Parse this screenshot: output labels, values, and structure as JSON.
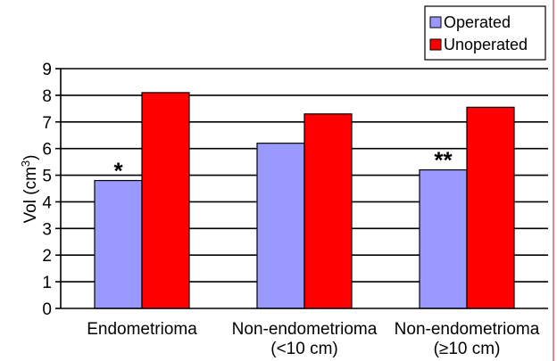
{
  "chart_data": {
    "type": "bar",
    "ylabel": "Vol (cm",
    "ylabel_sup": "3",
    "ylabel_end": ")",
    "ylim": [
      0,
      9
    ],
    "yticks": [
      0,
      1,
      2,
      3,
      4,
      5,
      6,
      7,
      8,
      9
    ],
    "grid": true,
    "legend_position": "top-right",
    "categories": [
      [
        "Endometrioma"
      ],
      [
        "Non-endometrioma",
        "(<10 cm)"
      ],
      [
        "Non-endometrioma",
        "(≥10 cm)"
      ]
    ],
    "series": [
      {
        "name": "Operated",
        "color": "#9999ff",
        "values": [
          4.8,
          6.2,
          5.2
        ]
      },
      {
        "name": "Unoperated",
        "color": "#ff0000",
        "values": [
          8.1,
          7.3,
          7.55
        ]
      }
    ],
    "annotations": [
      {
        "text": "*",
        "category_index": 0,
        "series_index": 0
      },
      {
        "text": "**",
        "category_index": 2,
        "series_index": 0
      }
    ]
  }
}
